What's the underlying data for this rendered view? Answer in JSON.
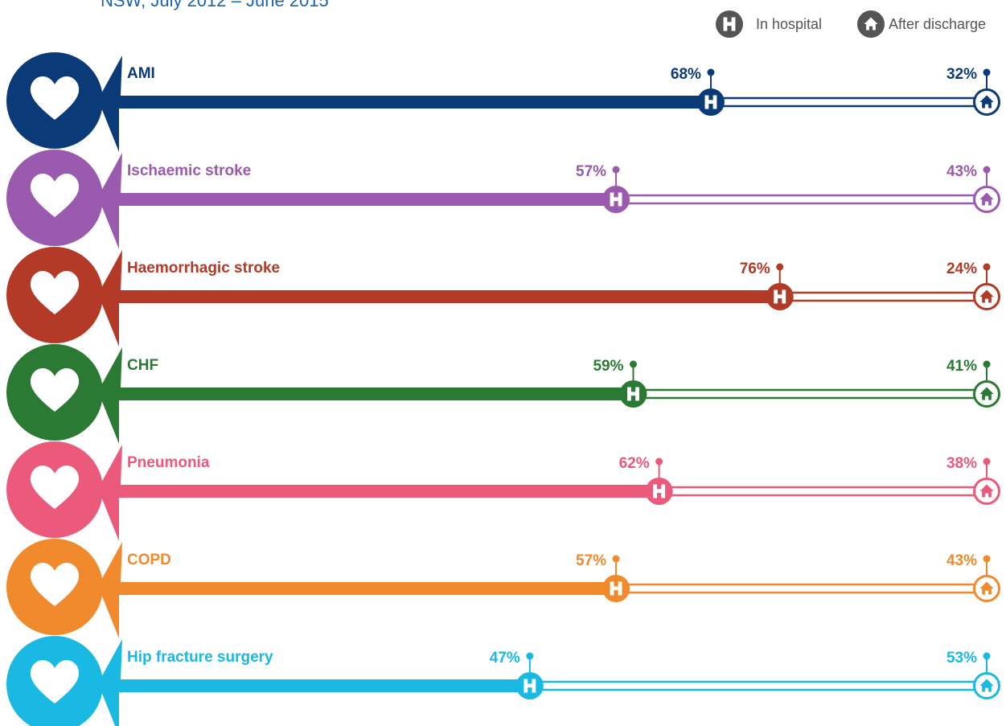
{
  "chart_data": {
    "type": "bar",
    "subtitle": "NSW, July 2012 – June 2015",
    "categories": [
      "AMI",
      "Ischaemic stroke",
      "Haemorrhagic stroke",
      "CHF",
      "Pneumonia",
      "COPD",
      "Hip fracture surgery"
    ],
    "colors": [
      "#0b3a78",
      "#9a5aae",
      "#b33a26",
      "#2b7a34",
      "#eb5a7b",
      "#f08a2c",
      "#1ab9e4"
    ],
    "series": [
      {
        "name": "In hospital",
        "color": "#555555",
        "values": [
          68,
          57,
          76,
          59,
          62,
          57,
          47
        ],
        "value_labels": [
          "68%",
          "57%",
          "76%",
          "59%",
          "62%",
          "57%",
          "47%"
        ]
      },
      {
        "name": "After discharge",
        "color": "#555555",
        "values": [
          32,
          43,
          24,
          41,
          38,
          43,
          53
        ],
        "value_labels": [
          "32%",
          "43%",
          "24%",
          "41%",
          "38%",
          "43%",
          "53%"
        ]
      }
    ],
    "xlim": [
      0,
      100
    ]
  }
}
